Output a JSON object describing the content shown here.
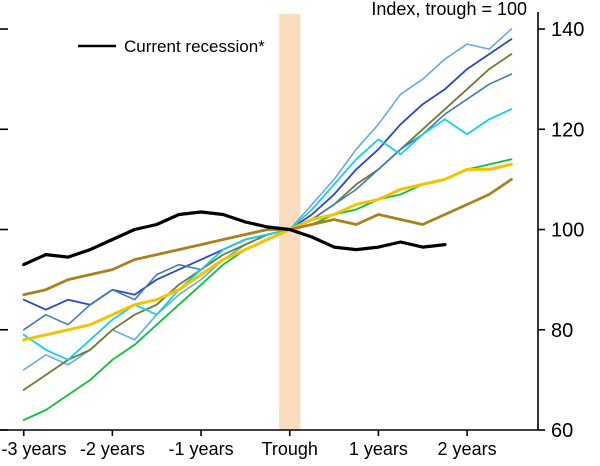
{
  "chart_data": {
    "type": "line",
    "title": "Index, trough = 100",
    "legend": [
      {
        "label": "Current recession*",
        "series": "current-recession",
        "color": "#000000"
      }
    ],
    "x_axis": {
      "unit": "years relative to trough",
      "tick_labels": [
        "-3 years",
        "-2 years",
        "-1 years",
        "Trough",
        "1 years",
        "2 years"
      ],
      "tick_positions_years": [
        -3,
        -2,
        -1,
        0,
        1,
        2
      ],
      "range_years": [
        -3.2,
        2.8
      ]
    },
    "y_axis": {
      "ticks": [
        60,
        80,
        100,
        120,
        140
      ],
      "range": [
        60,
        143
      ]
    },
    "trough_band": {
      "center_years": 0,
      "half_width_years": 0.12,
      "color": "#f9ddbd"
    },
    "series": [
      {
        "name": "past-recession-light-blue",
        "color": "#69a8e6",
        "stroke_width": 1.6,
        "start_quarter": -12,
        "values": [
          72,
          75,
          73,
          76,
          80,
          78,
          83,
          87,
          90,
          94,
          97,
          99,
          100,
          105,
          110,
          116,
          121,
          127,
          130,
          134,
          137,
          136,
          140
        ]
      },
      {
        "name": "past-recession-royal-blue",
        "color": "#2b48c8",
        "stroke_width": 1.8,
        "start_quarter": -12,
        "values": [
          86,
          84,
          86,
          85,
          88,
          87,
          90,
          92,
          94,
          96,
          98,
          99,
          100,
          103,
          107,
          112,
          116,
          121,
          125,
          128,
          132,
          135,
          138
        ]
      },
      {
        "name": "past-recession-olive",
        "color": "#6c7c33",
        "stroke_width": 1.8,
        "start_quarter": -12,
        "values": [
          68,
          71,
          74,
          76,
          80,
          83,
          85,
          89,
          92,
          95,
          97,
          99,
          100,
          102,
          105,
          109,
          112,
          116,
          120,
          124,
          128,
          132,
          135
        ]
      },
      {
        "name": "past-recession-steel-blue",
        "color": "#4679b2",
        "stroke_width": 1.6,
        "start_quarter": -12,
        "values": [
          80,
          83,
          81,
          85,
          88,
          86,
          91,
          93,
          92,
          96,
          98,
          99,
          100,
          102,
          105,
          108,
          112,
          116,
          119,
          123,
          126,
          129,
          131
        ]
      },
      {
        "name": "past-recession-cyan",
        "color": "#17cfe3",
        "stroke_width": 1.8,
        "start_quarter": -12,
        "values": [
          79,
          76,
          74,
          78,
          82,
          85,
          83,
          88,
          92,
          96,
          98,
          99,
          100,
          104,
          109,
          114,
          118,
          115,
          119,
          122,
          119,
          122,
          124
        ]
      },
      {
        "name": "past-recession-green",
        "color": "#0fc03c",
        "stroke_width": 1.8,
        "start_quarter": -12,
        "values": [
          62,
          64,
          67,
          70,
          74,
          77,
          81,
          85,
          89,
          93,
          96,
          98,
          100,
          101,
          103,
          104,
          106,
          107,
          109,
          110,
          112,
          113,
          114
        ]
      },
      {
        "name": "past-recession-yellow",
        "color": "#f0c400",
        "stroke_width": 3,
        "start_quarter": -12,
        "values": [
          78,
          79,
          80,
          81,
          83,
          85,
          86,
          88,
          91,
          94,
          96,
          98,
          100,
          102,
          103,
          105,
          106,
          108,
          109,
          110,
          112,
          112,
          113
        ]
      },
      {
        "name": "past-recession-dark-goldenrod",
        "color": "#a9821c",
        "stroke_width": 2.8,
        "start_quarter": -12,
        "values": [
          87,
          88,
          90,
          91,
          92,
          94,
          95,
          96,
          97,
          98,
          99,
          100,
          100,
          101,
          102,
          101,
          103,
          102,
          101,
          103,
          105,
          107,
          110
        ]
      },
      {
        "name": "current-recession",
        "color": "#000000",
        "stroke_width": 3.2,
        "start_quarter": -12,
        "values": [
          93,
          95,
          94.5,
          96,
          98,
          100,
          101,
          103,
          103.5,
          103,
          101.5,
          100.5,
          100,
          98.5,
          96.5,
          96,
          96.5,
          97.5,
          96.5,
          97
        ]
      }
    ]
  }
}
